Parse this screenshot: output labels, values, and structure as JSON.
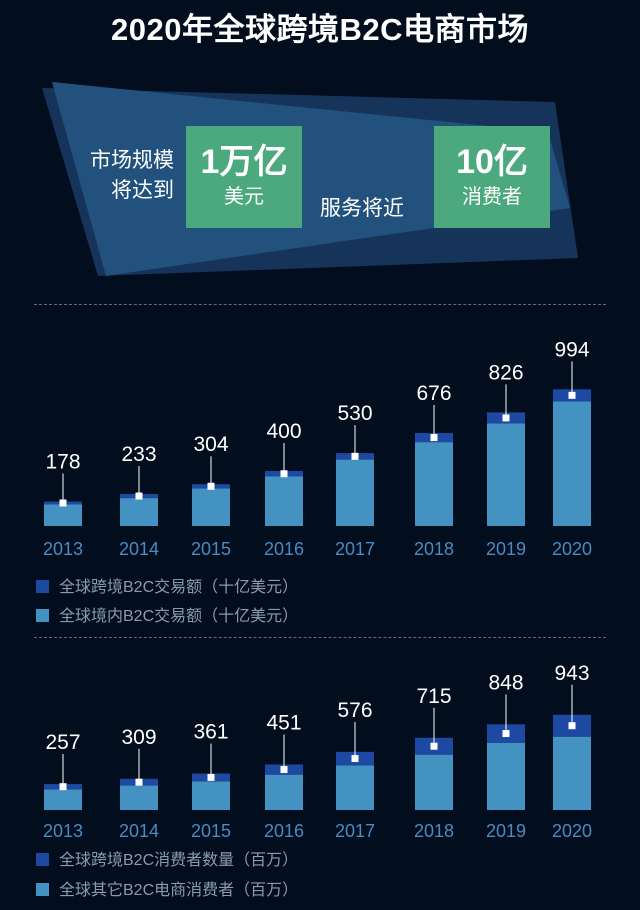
{
  "title": "2020年全球跨境B2C电商市场",
  "highlight": {
    "market_label_line1": "市场规模",
    "market_label_line2": "将达到",
    "market_value": "1万亿",
    "market_unit": "美元",
    "serve_label": "服务将近",
    "consumers_value": "10亿",
    "consumers_unit": "消费者"
  },
  "colors": {
    "background": "#020d1d",
    "cross_border": "#1e49a3",
    "domestic": "#4492c2",
    "green": "#4ca97d",
    "axis_text": "#4a8bc2"
  },
  "chart_data": [
    {
      "type": "bar",
      "stacked": true,
      "categories": [
        "2013",
        "2014",
        "2015",
        "2016",
        "2017",
        "2018",
        "2019",
        "2020"
      ],
      "series": [
        {
          "name": "全球跨境B2C交易额（十亿美元）",
          "values": [
            21,
            30,
            30,
            40,
            47,
            66,
            80,
            88
          ]
        },
        {
          "name": "全球境内B2C交易额（十亿美元）",
          "values": [
            157,
            203,
            274,
            360,
            483,
            610,
            746,
            906
          ]
        }
      ],
      "data_labels": [
        "178",
        "233",
        "304",
        "400",
        "530",
        "676",
        "826",
        "994"
      ],
      "totals": [
        178,
        233,
        304,
        400,
        530,
        676,
        826,
        994
      ],
      "legend_position": "bottom-left",
      "grid": false
    },
    {
      "type": "bar",
      "stacked": true,
      "categories": [
        "2013",
        "2014",
        "2015",
        "2016",
        "2017",
        "2018",
        "2019",
        "2020"
      ],
      "series": [
        {
          "name": "全球跨境B2C消费者数量（百万）",
          "values": [
            52,
            67,
            77,
            101,
            133,
            167,
            182,
            217
          ]
        },
        {
          "name": "全球其它B2C电商消费者（百万）",
          "values": [
            205,
            242,
            284,
            350,
            443,
            548,
            666,
            726
          ]
        }
      ],
      "data_labels": [
        "257",
        "309",
        "361",
        "451",
        "576",
        "715",
        "848",
        "943"
      ],
      "totals": [
        257,
        309,
        361,
        451,
        576,
        715,
        848,
        943
      ],
      "legend_position": "bottom-left",
      "grid": false
    }
  ]
}
